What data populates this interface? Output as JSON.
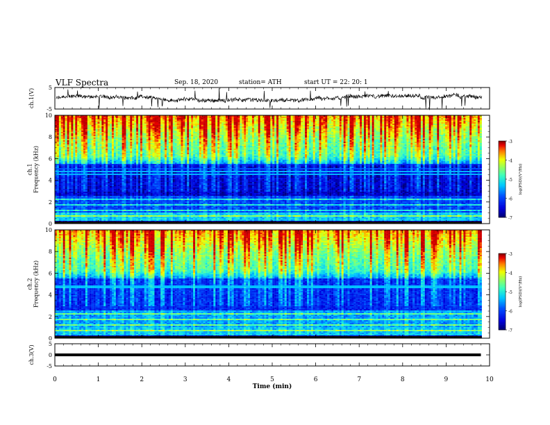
{
  "header": {
    "title": "VLF Spectra",
    "date": "Sep. 18, 2020",
    "station": "station= ATH",
    "start": "start  UT  =   22: 20: 1"
  },
  "chart_data": [
    {
      "type": "line",
      "panel": "ch1-waveform",
      "ylabel": "ch.1(V)",
      "ylim": [
        -5,
        5
      ],
      "yticks": [
        "5",
        "-5"
      ],
      "note_series": "noisy voltage trace near 0 V with short spikes to limits"
    },
    {
      "type": "heatmap",
      "panel": "ch1-spectrogram",
      "ylabel": "ch.1\nFrequency (kHz)",
      "ylim": [
        0,
        10
      ],
      "yticks": [
        "10",
        "8",
        "6",
        "4",
        "2",
        "0"
      ],
      "colorbar": {
        "label": "log(PSD)(V²/Hz)",
        "range": [
          -7,
          -3
        ],
        "ticks": [
          "-3",
          "-4",
          "-5",
          "-6",
          "-7"
        ]
      },
      "colormap": [
        "#00008f",
        "#0000ff",
        "#00ffff",
        "#80ff80",
        "#ffff00",
        "#ff0000",
        "#800000"
      ]
    },
    {
      "type": "heatmap",
      "panel": "ch2-spectrogram",
      "ylabel": "ch.2\nFrequency (kHz)",
      "ylim": [
        0,
        10
      ],
      "yticks": [
        "10",
        "8",
        "6",
        "4",
        "2",
        "0"
      ],
      "colorbar": {
        "label": "log(PSD)(V²/Hz)",
        "range": [
          -7,
          -3
        ],
        "ticks": [
          "-3",
          "-4",
          "-5",
          "-6",
          "-7"
        ]
      },
      "colormap": [
        "#00008f",
        "#0000ff",
        "#00ffff",
        "#80ff80",
        "#ffff00",
        "#ff0000",
        "#800000"
      ]
    },
    {
      "type": "line",
      "panel": "ch3-waveform",
      "ylabel": "ch.3(V)",
      "ylim": [
        -5,
        5
      ],
      "yticks": [
        "5",
        "0",
        "-5"
      ],
      "x": [
        0,
        9.8
      ],
      "y": [
        0,
        0
      ]
    }
  ],
  "xaxis": {
    "label": "Time (min)",
    "range": [
      0,
      10
    ],
    "ticks": [
      "0",
      "1",
      "2",
      "3",
      "4",
      "5",
      "6",
      "7",
      "8",
      "9",
      "10"
    ]
  }
}
